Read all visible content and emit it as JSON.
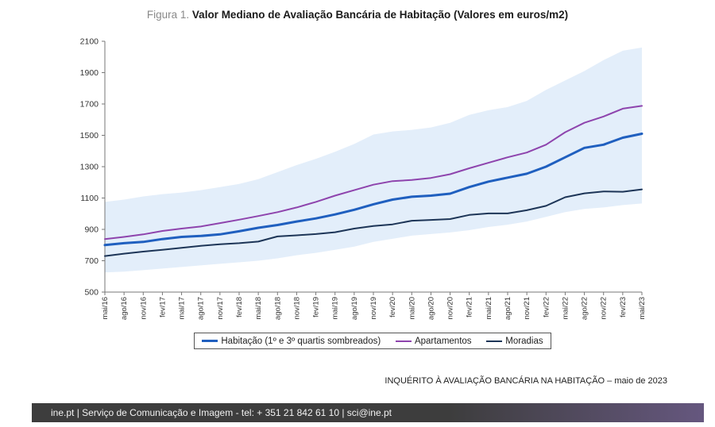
{
  "title": {
    "prefix": "Figura 1.",
    "main": "Valor Mediano de Avaliação Bancária de Habitação (Valores em euros/m2)"
  },
  "colors": {
    "habitacao": "#1f5fbf",
    "apartamentos": "#8e44ad",
    "moradias": "#1d3557",
    "band": "#e3eefa"
  },
  "chart_data": {
    "type": "line",
    "ylim": [
      500,
      2100
    ],
    "yticks": [
      500,
      700,
      900,
      1100,
      1300,
      1500,
      1700,
      1900,
      2100
    ],
    "x_labels": [
      "mai/16",
      "ago/16",
      "nov/16",
      "fev/17",
      "mai/17",
      "ago/17",
      "nov/17",
      "fev/18",
      "mai/18",
      "ago/18",
      "nov/18",
      "fev/19",
      "mai/19",
      "ago/19",
      "nov/19",
      "fev/20",
      "mai/20",
      "ago/20",
      "nov/20",
      "fev/21",
      "mai/21",
      "ago/21",
      "nov/21",
      "fev/22",
      "mai/22",
      "ago/22",
      "nov/22",
      "fev/23",
      "mai/23"
    ],
    "series": [
      {
        "name": "Habitação (1º e 3º quartis sombreados)",
        "color_key": "habitacao",
        "values": [
          800,
          812,
          820,
          838,
          852,
          858,
          868,
          888,
          910,
          928,
          950,
          970,
          995,
          1025,
          1060,
          1090,
          1108,
          1115,
          1128,
          1170,
          1205,
          1230,
          1255,
          1300,
          1360,
          1420,
          1440,
          1485,
          1510
        ]
      },
      {
        "name": "Apartamentos",
        "color_key": "apartamentos",
        "values": [
          838,
          852,
          868,
          890,
          905,
          918,
          940,
          962,
          985,
          1010,
          1040,
          1075,
          1115,
          1150,
          1185,
          1208,
          1215,
          1228,
          1252,
          1290,
          1325,
          1360,
          1390,
          1440,
          1520,
          1580,
          1620,
          1670,
          1688
        ]
      },
      {
        "name": "Moradias",
        "color_key": "moradias",
        "values": [
          730,
          745,
          758,
          770,
          782,
          795,
          805,
          812,
          822,
          855,
          862,
          870,
          882,
          905,
          922,
          932,
          955,
          960,
          966,
          992,
          1002,
          1002,
          1022,
          1050,
          1105,
          1130,
          1142,
          1140,
          1155
        ]
      }
    ],
    "band": {
      "q1": [
        625,
        630,
        640,
        650,
        660,
        670,
        680,
        690,
        700,
        715,
        735,
        750,
        770,
        790,
        820,
        840,
        860,
        870,
        880,
        895,
        915,
        930,
        950,
        980,
        1010,
        1030,
        1040,
        1055,
        1065
      ],
      "q3": [
        1075,
        1090,
        1110,
        1125,
        1135,
        1150,
        1170,
        1190,
        1220,
        1265,
        1310,
        1350,
        1395,
        1445,
        1505,
        1525,
        1535,
        1550,
        1580,
        1630,
        1660,
        1680,
        1720,
        1790,
        1850,
        1910,
        1980,
        2040,
        2060
      ]
    }
  },
  "legend": [
    {
      "label": "Habitação (1º e 3º quartis sombreados)",
      "color_key": "habitacao",
      "thick": true
    },
    {
      "label": "Apartamentos",
      "color_key": "apartamentos",
      "thick": false
    },
    {
      "label": "Moradias",
      "color_key": "moradias",
      "thick": false
    }
  ],
  "source": "INQUÉRITO À AVALIAÇÃO BANCÁRIA NA HABITAÇÃO – maio de 2023",
  "footer": "ine.pt | Serviço de Comunicação e Imagem - tel: + 351 21 842 61 10 | sci@ine.pt"
}
